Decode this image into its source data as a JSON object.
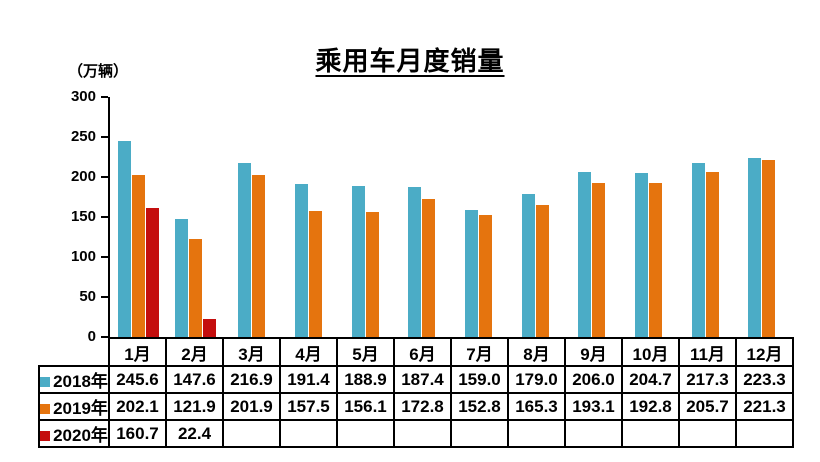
{
  "chart_data": {
    "type": "bar",
    "title": "乘用车月度销量",
    "unit_label": "（万辆）",
    "categories": [
      "1月",
      "2月",
      "3月",
      "4月",
      "5月",
      "6月",
      "7月",
      "8月",
      "9月",
      "10月",
      "11月",
      "12月"
    ],
    "series": [
      {
        "name": "2018年",
        "color": "#4BACC6",
        "values": [
          245.6,
          147.6,
          216.9,
          191.4,
          188.9,
          187.4,
          159.0,
          179.0,
          206.0,
          204.7,
          217.3,
          223.3
        ]
      },
      {
        "name": "2019年",
        "color": "#E5740E",
        "values": [
          202.1,
          121.9,
          201.9,
          157.5,
          156.1,
          172.8,
          152.8,
          165.3,
          193.1,
          192.8,
          205.7,
          221.3
        ]
      },
      {
        "name": "2020年",
        "color": "#C40E0E",
        "values": [
          160.7,
          22.4,
          null,
          null,
          null,
          null,
          null,
          null,
          null,
          null,
          null,
          null
        ]
      }
    ],
    "ylim": [
      0,
      300
    ],
    "yticks": [
      0,
      50,
      100,
      150,
      200,
      250,
      300
    ],
    "grid": false,
    "legend_position": "table-left-column",
    "value_format": "one-decimal",
    "axis_color": "#000000"
  }
}
